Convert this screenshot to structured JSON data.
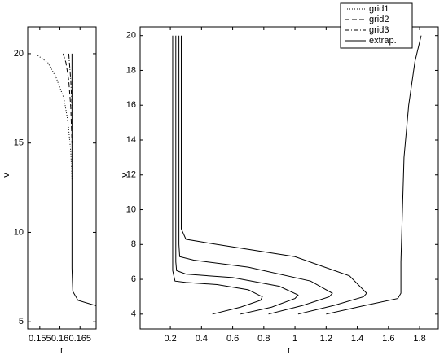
{
  "chart_data": [
    {
      "type": "line",
      "x_label": "r",
      "y_label": "v",
      "xlim": [
        0.152,
        0.169
      ],
      "ylim": [
        4.6,
        21.5
      ],
      "xticks": [
        0.155,
        0.16,
        0.165
      ],
      "yticks": [
        5,
        10,
        15,
        20
      ],
      "series": [
        {
          "name": "grid1",
          "color": "#000000",
          "dash": "dotted",
          "x": [
            0.1545,
            0.157,
            0.159,
            0.161,
            0.162,
            0.1627,
            0.163
          ],
          "values": [
            19.9,
            19.5,
            18.7,
            17.5,
            16.2,
            14.5,
            13
          ]
        },
        {
          "name": "grid2",
          "color": "#000000",
          "dash": "dashed",
          "x": [
            0.1608,
            0.1615,
            0.1622,
            0.1627,
            0.163
          ],
          "values": [
            20,
            19.5,
            18.5,
            17,
            15
          ]
        },
        {
          "name": "grid3",
          "color": "#000000",
          "dash": "dashdot",
          "x": [
            0.1622,
            0.1627,
            0.163
          ],
          "values": [
            20,
            18.5,
            17
          ]
        },
        {
          "name": "extrap.",
          "color": "#000000",
          "dash": "solid",
          "x": [
            0.169,
            0.1645,
            0.1632,
            0.163,
            0.163
          ],
          "values": [
            5.9,
            6.2,
            6.7,
            8,
            20
          ]
        }
      ]
    },
    {
      "type": "line",
      "x_label": "r",
      "y_label": "v",
      "xlim": [
        0.006,
        1.92
      ],
      "ylim": [
        3.15,
        20.5
      ],
      "xticks": [
        0.2,
        0.4,
        0.6,
        0.8,
        1,
        1.2,
        1.4,
        1.6,
        1.8
      ],
      "yticks": [
        4,
        6,
        8,
        10,
        12,
        14,
        16,
        18,
        20
      ],
      "series": [
        {
          "color": "#000000",
          "dash": "solid",
          "x": [
            0.47,
            0.65,
            0.78,
            0.79,
            0.7,
            0.5,
            0.3,
            0.23,
            0.215,
            0.215
          ],
          "values": [
            4,
            4.4,
            4.8,
            5.0,
            5.4,
            5.7,
            5.82,
            5.9,
            6.5,
            20
          ]
        },
        {
          "color": "#000000",
          "dash": "solid",
          "x": [
            0.65,
            0.85,
            1.0,
            1.02,
            0.9,
            0.6,
            0.3,
            0.24,
            0.235,
            0.235
          ],
          "values": [
            4,
            4.4,
            4.9,
            5.1,
            5.6,
            6.1,
            6.3,
            6.5,
            7,
            20
          ]
        },
        {
          "color": "#000000",
          "dash": "solid",
          "x": [
            0.83,
            1.05,
            1.22,
            1.24,
            1.1,
            0.7,
            0.35,
            0.26,
            0.255,
            0.255
          ],
          "values": [
            4,
            4.5,
            5.0,
            5.2,
            5.9,
            6.7,
            7.1,
            7.3,
            8,
            20
          ]
        },
        {
          "color": "#000000",
          "dash": "solid",
          "x": [
            1.02,
            1.25,
            1.44,
            1.46,
            1.35,
            1.0,
            0.5,
            0.3,
            0.27,
            0.27
          ],
          "values": [
            4,
            4.5,
            5.0,
            5.2,
            6.2,
            7.3,
            8.0,
            8.3,
            8.9,
            20
          ]
        },
        {
          "color": "#000000",
          "dash": "solid",
          "x": [
            1.2,
            1.45,
            1.66,
            1.68,
            1.68,
            1.69,
            1.7,
            1.73,
            1.77,
            1.81
          ],
          "values": [
            4,
            4.5,
            4.9,
            5.2,
            7,
            10,
            13,
            16,
            18.5,
            20
          ]
        }
      ]
    }
  ]
}
